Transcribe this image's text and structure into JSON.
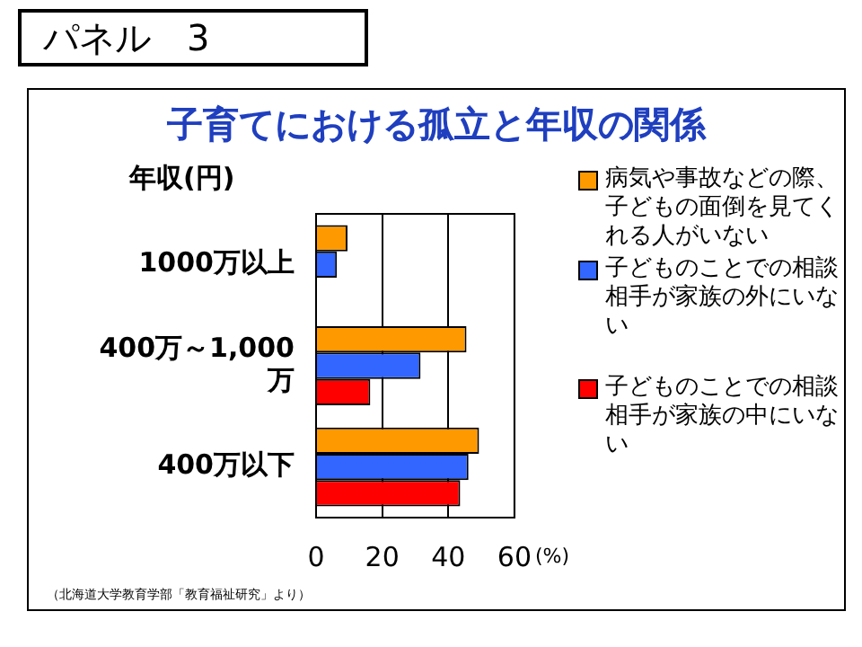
{
  "chart_data": {
    "type": "bar",
    "orientation": "horizontal",
    "title": "子育てにおける孤立と年収の関係",
    "ylabel": "年収(円)",
    "xlabel": "(%)",
    "categories": [
      "1000万以上",
      "400万～1,000万",
      "400万以下"
    ],
    "series": [
      {
        "name": "病気や事故などの際、子どもの面倒を見てくれる人がいない",
        "color": "#ff9900",
        "values": [
          9.5,
          45.5,
          49.3
        ]
      },
      {
        "name": "子どものことでの相談相手が家族の外にいない",
        "color": "#3366ff",
        "values": [
          6.3,
          31.6,
          46.1
        ]
      },
      {
        "name": "子どものことでの相談相手が家族の中にいない",
        "color": "#ff0000",
        "values": [
          null,
          16.4,
          43.6
        ]
      }
    ],
    "xlim": [
      0,
      60
    ],
    "xticks": [
      0,
      20,
      40,
      60
    ],
    "grid": "x",
    "legend": "right",
    "annotations": [
      "パネル　3",
      "（北海道大学教育学部「教育福祉研究」より）"
    ]
  }
}
